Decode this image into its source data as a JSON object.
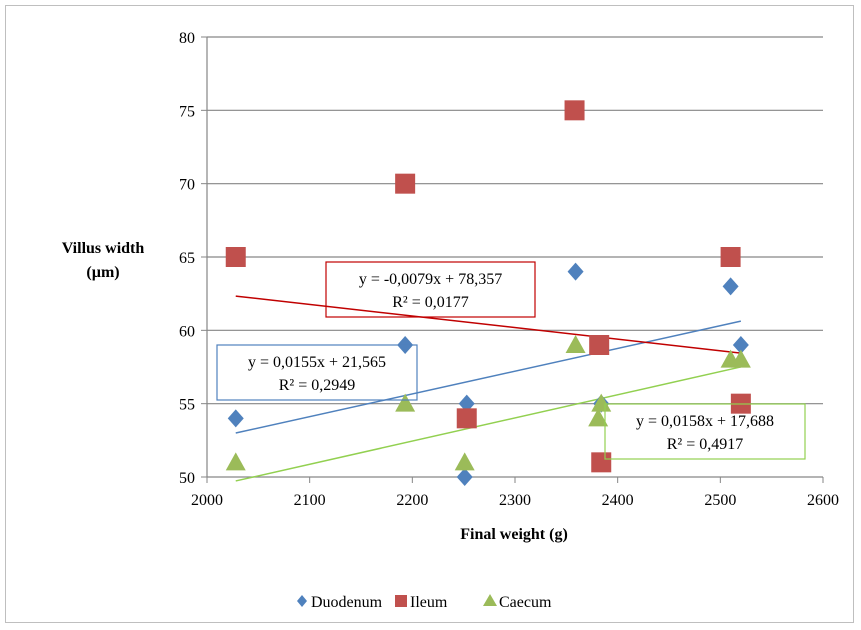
{
  "chart_data": {
    "type": "scatter",
    "xlabel": "Final weight (g)",
    "ylabel": [
      "Villus width",
      "(µm)"
    ],
    "xlim": [
      2000,
      2600
    ],
    "ylim": [
      50,
      80
    ],
    "xticks": [
      2000,
      2100,
      2200,
      2300,
      2400,
      2500,
      2600
    ],
    "yticks": [
      50,
      55,
      60,
      65,
      70,
      75,
      80
    ],
    "grid": "horizontal",
    "legend": "bottom",
    "series": [
      {
        "name": "Duodenum",
        "marker": "diamond",
        "color": "#4f81bd",
        "points": [
          [
            2028,
            54
          ],
          [
            2193,
            59
          ],
          [
            2253,
            55
          ],
          [
            2251,
            50
          ],
          [
            2359,
            64
          ],
          [
            2384,
            55
          ],
          [
            2510,
            63
          ],
          [
            2520,
            59
          ]
        ],
        "trend": {
          "slope": 0.0155,
          "intercept": 21.565,
          "x": [
            2028,
            2520
          ],
          "label": [
            "y = 0,0155x + 21,565",
            "R² = 0,2949"
          ],
          "color": "#4f81bd"
        }
      },
      {
        "name": "Ileum",
        "marker": "square",
        "color": "#c0504d",
        "points": [
          [
            2028,
            65
          ],
          [
            2193,
            70
          ],
          [
            2253,
            54
          ],
          [
            2358,
            75
          ],
          [
            2382,
            59
          ],
          [
            2384,
            51
          ],
          [
            2510,
            65
          ],
          [
            2520,
            55
          ]
        ],
        "trend": {
          "slope": -0.0079,
          "intercept": 78.357,
          "x": [
            2028,
            2520
          ],
          "label": [
            "y = -0,0079x + 78,357",
            "R² = 0,0177"
          ],
          "color": "#c00000"
        }
      },
      {
        "name": "Caecum",
        "marker": "triangle",
        "color": "#9bbb59",
        "points": [
          [
            2028,
            51
          ],
          [
            2193,
            55
          ],
          [
            2251,
            51
          ],
          [
            2359,
            59
          ],
          [
            2381,
            54
          ],
          [
            2384,
            55
          ],
          [
            2510,
            58
          ],
          [
            2520,
            58
          ]
        ],
        "trend": {
          "slope": 0.0158,
          "intercept": 17.688,
          "x": [
            2028,
            2520
          ],
          "label": [
            "y = 0,0158x + 17,688",
            "R² = 0,4917"
          ],
          "color": "#92d050"
        }
      }
    ]
  }
}
